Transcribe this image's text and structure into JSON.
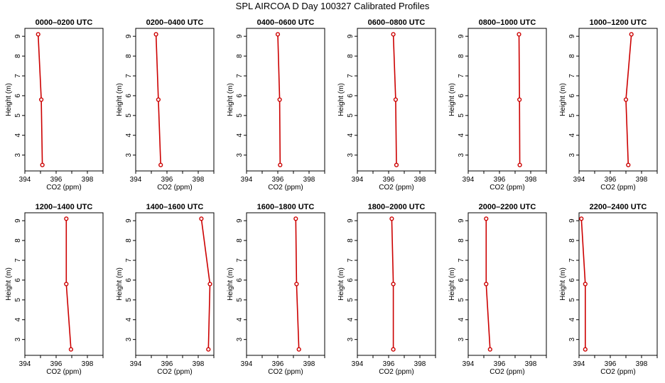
{
  "figure_title": "SPL AIRCOA D  Day 100327  Calibrated Profiles",
  "colors": {
    "profile": "#cc0000",
    "axis": "#000000"
  },
  "chart_data": [
    {
      "type": "line",
      "title": "0000–0200 UTC",
      "xlabel": "CO2 (ppm)",
      "ylabel": "Height (m)",
      "xlim": [
        394,
        399
      ],
      "ylim": [
        2.2,
        9.4
      ],
      "xticks": [
        394,
        396,
        398
      ],
      "yticks": [
        3,
        4,
        5,
        6,
        7,
        8,
        9
      ],
      "grid": false,
      "series": [
        {
          "x": [
            394.85,
            395.05,
            395.12
          ],
          "y": [
            9.1,
            5.8,
            2.5
          ]
        }
      ]
    },
    {
      "type": "line",
      "title": "0200–0400 UTC",
      "xlabel": "CO2 (ppm)",
      "ylabel": "Height (m)",
      "xlim": [
        394,
        399
      ],
      "ylim": [
        2.2,
        9.4
      ],
      "xticks": [
        394,
        396,
        398
      ],
      "yticks": [
        3,
        4,
        5,
        6,
        7,
        8,
        9
      ],
      "grid": false,
      "series": [
        {
          "x": [
            395.3,
            395.45,
            395.6
          ],
          "y": [
            9.1,
            5.8,
            2.5
          ]
        }
      ]
    },
    {
      "type": "line",
      "title": "0400–0600 UTC",
      "xlabel": "CO2 (ppm)",
      "ylabel": "Height (m)",
      "xlim": [
        394,
        399
      ],
      "ylim": [
        2.2,
        9.4
      ],
      "xticks": [
        394,
        396,
        398
      ],
      "yticks": [
        3,
        4,
        5,
        6,
        7,
        8,
        9
      ],
      "grid": false,
      "series": [
        {
          "x": [
            396.0,
            396.12,
            396.15
          ],
          "y": [
            9.1,
            5.8,
            2.5
          ]
        }
      ]
    },
    {
      "type": "line",
      "title": "0600–0800 UTC",
      "xlabel": "CO2 (ppm)",
      "ylabel": "Height (m)",
      "xlim": [
        394,
        399
      ],
      "ylim": [
        2.2,
        9.4
      ],
      "xticks": [
        394,
        396,
        398
      ],
      "yticks": [
        3,
        4,
        5,
        6,
        7,
        8,
        9
      ],
      "grid": false,
      "series": [
        {
          "x": [
            396.3,
            396.45,
            396.5
          ],
          "y": [
            9.1,
            5.8,
            2.5
          ]
        }
      ]
    },
    {
      "type": "line",
      "title": "0800–1000 UTC",
      "xlabel": "CO2 (ppm)",
      "ylabel": "Height (m)",
      "xlim": [
        394,
        399
      ],
      "ylim": [
        2.2,
        9.4
      ],
      "xticks": [
        394,
        396,
        398
      ],
      "yticks": [
        3,
        4,
        5,
        6,
        7,
        8,
        9
      ],
      "grid": false,
      "series": [
        {
          "x": [
            397.25,
            397.28,
            397.3
          ],
          "y": [
            9.1,
            5.8,
            2.5
          ]
        }
      ]
    },
    {
      "type": "line",
      "title": "1000–1200 UTC",
      "xlabel": "CO2 (ppm)",
      "ylabel": "Height (m)",
      "xlim": [
        394,
        399
      ],
      "ylim": [
        2.2,
        9.4
      ],
      "xticks": [
        394,
        396,
        398
      ],
      "yticks": [
        3,
        4,
        5,
        6,
        7,
        8,
        9
      ],
      "grid": false,
      "series": [
        {
          "x": [
            397.35,
            397.0,
            397.15
          ],
          "y": [
            9.1,
            5.8,
            2.5
          ]
        }
      ]
    },
    {
      "type": "line",
      "title": "1200–1400 UTC",
      "xlabel": "CO2 (ppm)",
      "ylabel": "Height (m)",
      "xlim": [
        394,
        399
      ],
      "ylim": [
        2.2,
        9.4
      ],
      "xticks": [
        394,
        396,
        398
      ],
      "yticks": [
        3,
        4,
        5,
        6,
        7,
        8,
        9
      ],
      "grid": false,
      "series": [
        {
          "x": [
            396.65,
            396.65,
            396.95
          ],
          "y": [
            9.1,
            5.8,
            2.5
          ]
        }
      ]
    },
    {
      "type": "line",
      "title": "1400–1600 UTC",
      "xlabel": "CO2 (ppm)",
      "ylabel": "Height (m)",
      "xlim": [
        394,
        399
      ],
      "ylim": [
        2.2,
        9.4
      ],
      "xticks": [
        394,
        396,
        398
      ],
      "yticks": [
        3,
        4,
        5,
        6,
        7,
        8,
        9
      ],
      "grid": false,
      "series": [
        {
          "x": [
            398.2,
            398.75,
            398.65
          ],
          "y": [
            9.1,
            5.8,
            2.5
          ]
        }
      ]
    },
    {
      "type": "line",
      "title": "1600–1800 UTC",
      "xlabel": "CO2 (ppm)",
      "ylabel": "Height (m)",
      "xlim": [
        394,
        399
      ],
      "ylim": [
        2.2,
        9.4
      ],
      "xticks": [
        394,
        396,
        398
      ],
      "yticks": [
        3,
        4,
        5,
        6,
        7,
        8,
        9
      ],
      "grid": false,
      "series": [
        {
          "x": [
            397.15,
            397.2,
            397.35
          ],
          "y": [
            9.1,
            5.8,
            2.5
          ]
        }
      ]
    },
    {
      "type": "line",
      "title": "1800–2000 UTC",
      "xlabel": "CO2 (ppm)",
      "ylabel": "Height (m)",
      "xlim": [
        394,
        399
      ],
      "ylim": [
        2.2,
        9.4
      ],
      "xticks": [
        394,
        396,
        398
      ],
      "yticks": [
        3,
        4,
        5,
        6,
        7,
        8,
        9
      ],
      "grid": false,
      "series": [
        {
          "x": [
            396.2,
            396.3,
            396.3
          ],
          "y": [
            9.1,
            5.8,
            2.5
          ]
        }
      ]
    },
    {
      "type": "line",
      "title": "2000–2200 UTC",
      "xlabel": "CO2 (ppm)",
      "ylabel": "Height (m)",
      "xlim": [
        394,
        399
      ],
      "ylim": [
        2.2,
        9.4
      ],
      "xticks": [
        394,
        396,
        398
      ],
      "yticks": [
        3,
        4,
        5,
        6,
        7,
        8,
        9
      ],
      "grid": false,
      "series": [
        {
          "x": [
            395.15,
            395.15,
            395.4
          ],
          "y": [
            9.1,
            5.8,
            2.5
          ]
        }
      ]
    },
    {
      "type": "line",
      "title": "2200–2400 UTC",
      "xlabel": "CO2 (ppm)",
      "ylabel": "Height (m)",
      "xlim": [
        394,
        399
      ],
      "ylim": [
        2.2,
        9.4
      ],
      "xticks": [
        394,
        396,
        398
      ],
      "yticks": [
        3,
        4,
        5,
        6,
        7,
        8,
        9
      ],
      "grid": false,
      "series": [
        {
          "x": [
            394.15,
            394.4,
            394.4
          ],
          "y": [
            9.1,
            5.8,
            2.5
          ]
        }
      ]
    }
  ]
}
